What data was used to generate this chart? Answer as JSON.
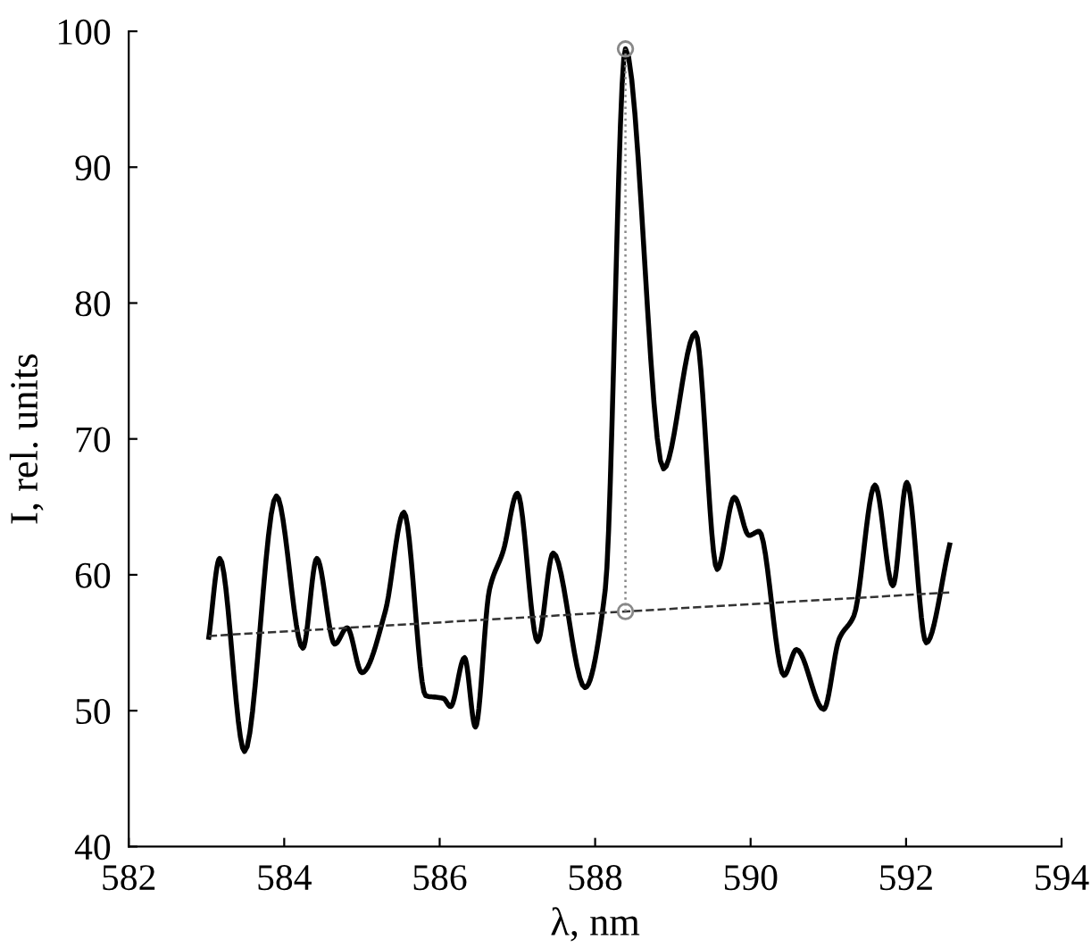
{
  "chart_data": {
    "type": "line",
    "xlabel": "λ, nm",
    "ylabel": "I, rel. units",
    "xlim": [
      582,
      594
    ],
    "xticks": [
      582,
      584,
      586,
      588,
      590,
      592,
      594
    ],
    "ylim": [
      40,
      100
    ],
    "yticks": [
      40,
      50,
      60,
      70,
      80,
      90,
      100
    ],
    "grid": false,
    "legend": false,
    "series": [
      {
        "color": "#000000",
        "line_style": "solid",
        "marker": "none",
        "x": [
          583.03,
          583.17,
          583.49,
          583.9,
          584.24,
          584.42,
          584.65,
          584.81,
          585.0,
          585.3,
          585.54,
          585.82,
          586.05,
          586.14,
          586.32,
          586.46,
          586.64,
          586.82,
          587.0,
          587.26,
          587.46,
          587.87,
          588.13,
          588.39,
          588.88,
          589.29,
          589.57,
          589.79,
          589.98,
          590.11,
          590.43,
          590.59,
          590.94,
          591.14,
          591.33,
          591.6,
          591.83,
          592.01,
          592.26,
          592.56
        ],
        "values": [
          55.4,
          61.2,
          47.0,
          65.8,
          54.6,
          61.2,
          54.9,
          56.1,
          52.8,
          57.3,
          64.6,
          51.1,
          50.9,
          50.3,
          53.9,
          48.8,
          58.9,
          61.8,
          66.0,
          55.1,
          61.6,
          51.7,
          58.9,
          98.7,
          67.8,
          77.8,
          60.4,
          65.7,
          62.9,
          63.2,
          52.6,
          54.5,
          50.1,
          55.3,
          57.0,
          66.6,
          59.2,
          66.8,
          55.0,
          62.2
        ]
      },
      {
        "color": "#333333",
        "line_style": "dashed",
        "marker": "none",
        "x": [
          583.03,
          592.56
        ],
        "values": [
          55.5,
          58.7
        ]
      },
      {
        "color": "#888888",
        "line_style": "dotted",
        "marker": "circle",
        "x": [
          588.39,
          588.39
        ],
        "values": [
          57.3,
          98.7
        ]
      }
    ]
  }
}
